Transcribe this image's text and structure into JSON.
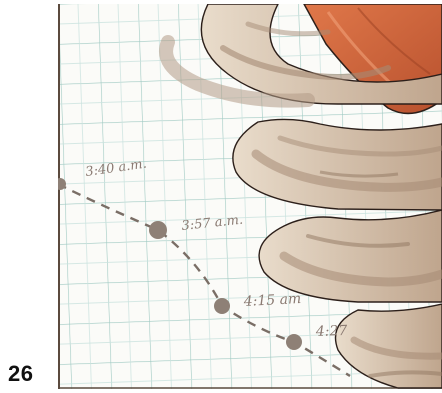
{
  "page": {
    "number": "26"
  },
  "illustration": {
    "time_labels": [
      {
        "label": "3:40 a.m."
      },
      {
        "label": "3:57 a.m."
      },
      {
        "label": "4:15 am"
      },
      {
        "label": "4:27"
      }
    ],
    "colors": {
      "grid": "#9fc9c2",
      "track_dots": "#8e8076",
      "track_dash": "#7a6e66",
      "label_ink": "#8a7a72",
      "cloud_outline": "#2c1f1a",
      "cloud_tan": "#b8a08a",
      "cloud_light": "#e6d8c6",
      "funnel_orange": "#d4683c",
      "frame_edge": "#5b4a3e"
    }
  }
}
